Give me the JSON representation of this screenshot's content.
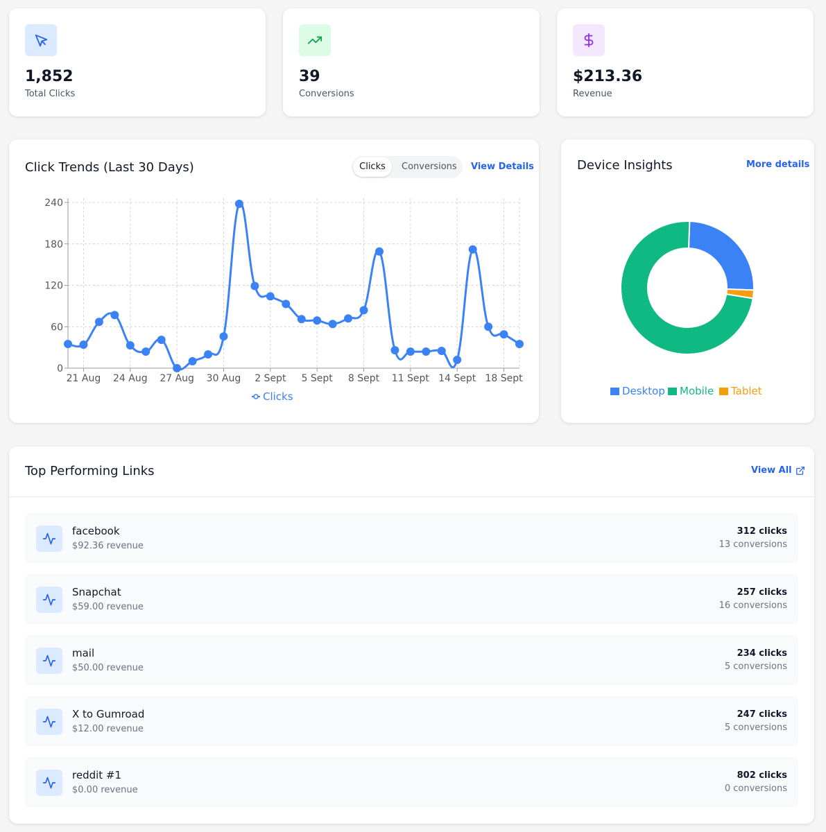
{
  "stats": [
    {
      "value": "1,852",
      "label": "Total Clicks"
    },
    {
      "value": "39",
      "label": "Conversions"
    },
    {
      "value": "$213.36",
      "label": "Revenue"
    }
  ],
  "trend_card": {
    "title": "Click Trends (Last 30 Days)",
    "tabs": [
      "Clicks",
      "Conversions"
    ],
    "action": "View Details"
  },
  "device_card": {
    "title": "Device Insights",
    "action": "More details"
  },
  "chart_data": [
    {
      "type": "line",
      "categories": [
        null,
        "21 Aug",
        null,
        null,
        "24 Aug",
        null,
        null,
        "27 Aug",
        null,
        null,
        "30 Aug",
        null,
        null,
        "2 Sept",
        null,
        null,
        "5 Sept",
        null,
        null,
        "8 Sept",
        null,
        null,
        "11 Sept",
        null,
        null,
        "14 Sept",
        null,
        null,
        "18 Sept",
        null
      ],
      "series": [
        {
          "name": "Clicks",
          "color": "#3b82f6",
          "values": [
            35,
            34,
            67,
            77,
            33,
            24,
            41,
            0,
            10,
            20,
            46,
            238,
            119,
            104,
            93,
            71,
            69,
            64,
            72,
            84,
            169,
            26,
            24,
            24,
            25,
            12,
            172,
            60,
            49,
            35
          ]
        }
      ],
      "ylim": [
        0,
        240
      ],
      "yticks": [
        0,
        60,
        120,
        180,
        240
      ],
      "grid": true
    },
    {
      "type": "donut",
      "categories": [
        "Desktop",
        "Mobile",
        "Tablet"
      ],
      "values": [
        25,
        73,
        2
      ],
      "colors": [
        "#3b82f6",
        "#10b981",
        "#f59e0b"
      ]
    }
  ],
  "links_card": {
    "title": "Top Performing Links",
    "action": "View All",
    "rows": [
      {
        "name": "facebook",
        "revenue": "$92.36 revenue",
        "clicks": "312 clicks",
        "conversions": "13 conversions"
      },
      {
        "name": "Snapchat",
        "revenue": "$59.00 revenue",
        "clicks": "257 clicks",
        "conversions": "16 conversions"
      },
      {
        "name": "mail",
        "revenue": "$50.00 revenue",
        "clicks": "234 clicks",
        "conversions": "5 conversions"
      },
      {
        "name": "X to Gumroad",
        "revenue": "$12.00 revenue",
        "clicks": "247 clicks",
        "conversions": "5 conversions"
      },
      {
        "name": "reddit #1",
        "revenue": "$0.00 revenue",
        "clicks": "802 clicks",
        "conversions": "0 conversions"
      }
    ]
  }
}
